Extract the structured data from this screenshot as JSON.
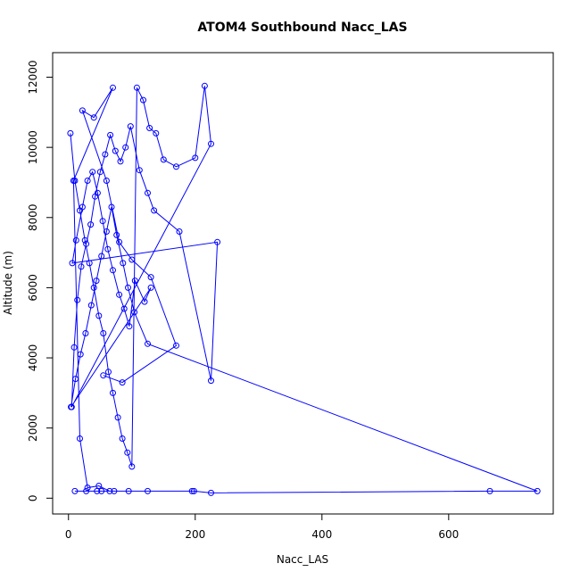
{
  "chart_data": {
    "type": "line",
    "title": "ATOM4 Southbound Nacc_LAS",
    "xlabel": "Nacc_LAS",
    "ylabel": "Altitude (m)",
    "xlim": [
      -25,
      765
    ],
    "ylim": [
      -450,
      12700
    ],
    "xticks": [
      0,
      200,
      400,
      600
    ],
    "yticks": [
      0,
      2000,
      4000,
      6000,
      8000,
      10000,
      12000
    ],
    "grid": false,
    "color": "#0000ff",
    "series": [
      {
        "markers": "open-circle",
        "x": [
          3,
          10,
          18,
          26,
          33,
          40,
          48,
          55,
          63,
          70,
          78,
          85,
          93,
          100,
          108,
          118,
          128,
          138,
          150,
          170,
          200,
          215,
          225,
          5,
          9,
          14,
          20,
          28,
          35,
          42,
          50,
          58,
          66,
          74,
          82,
          90,
          98,
          112,
          125,
          135,
          175,
          225,
          235,
          6,
          12,
          22,
          30,
          38,
          46,
          54,
          62,
          70,
          80,
          88,
          96,
          105,
          120,
          130,
          4,
          11,
          19,
          27,
          36,
          44,
          52,
          60,
          68,
          76,
          86,
          94,
          104,
          125,
          740,
          665,
          225,
          198,
          195,
          125,
          95,
          72,
          52,
          45,
          28,
          10,
          65,
          48,
          30,
          18,
          8,
          70,
          40,
          22,
          60,
          80,
          100,
          130,
          170,
          85,
          55
        ],
        "y": [
          10400,
          9050,
          8200,
          7350,
          6700,
          6000,
          5200,
          4700,
          3600,
          3000,
          2300,
          1700,
          1300,
          900,
          11700,
          11350,
          10550,
          10400,
          9650,
          9450,
          9700,
          11750,
          10100,
          2600,
          4300,
          5650,
          6600,
          7250,
          7800,
          8600,
          9300,
          9800,
          10350,
          9900,
          9600,
          10000,
          10600,
          9350,
          8700,
          8200,
          7600,
          3350,
          7300,
          6700,
          7350,
          8300,
          9050,
          9300,
          8700,
          7900,
          7100,
          6500,
          5800,
          5400,
          4900,
          6200,
          5600,
          6000,
          2600,
          3400,
          4100,
          4700,
          5500,
          6200,
          6900,
          7600,
          8300,
          7500,
          6700,
          6000,
          5300,
          4400,
          200,
          200,
          150,
          200,
          200,
          200,
          200,
          200,
          200,
          200,
          200,
          200,
          200,
          350,
          300,
          1700,
          9050,
          11700,
          10850,
          11050,
          9050,
          7300,
          6800,
          6300,
          4350,
          3300,
          3500
        ]
      }
    ]
  }
}
